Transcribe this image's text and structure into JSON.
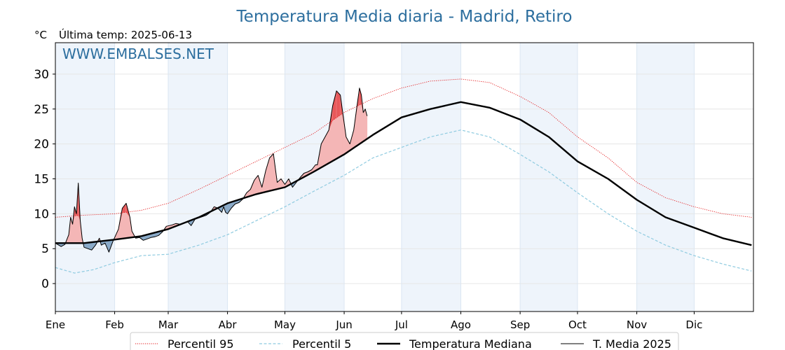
{
  "title": "Temperatura Media diaria - Madrid, Retiro",
  "unit_label": "°C",
  "last_temp_label": "Última temp: 2025-06-13",
  "watermark": "WWW.EMBALSES.NET",
  "colors": {
    "title": "#2c6e9e",
    "p95": "#e31a1c",
    "p5": "#8fcbe0",
    "median": "#000000",
    "current": "#000000",
    "above_fill": "#f4b6b6",
    "above_fill_strong": "#e8585a",
    "below_fill": "#8aaac8",
    "month_band": "#eef4fb",
    "grid": "#e6e6e6"
  },
  "chart_data": {
    "type": "line",
    "title": "Temperatura Media diaria - Madrid, Retiro",
    "ylabel": "°C",
    "xlim": [
      0,
      365
    ],
    "ylim": [
      -4,
      34.5
    ],
    "yticks": [
      0,
      5,
      10,
      15,
      20,
      25,
      30
    ],
    "grid": true,
    "legend_position": "bottom",
    "months": [
      {
        "label": "Ene",
        "day": 0
      },
      {
        "label": "Feb",
        "day": 31
      },
      {
        "label": "Mar",
        "day": 59
      },
      {
        "label": "Abr",
        "day": 90
      },
      {
        "label": "May",
        "day": 120
      },
      {
        "label": "Jun",
        "day": 151
      },
      {
        "label": "Jul",
        "day": 181
      },
      {
        "label": "Ago",
        "day": 212
      },
      {
        "label": "Sep",
        "day": 243
      },
      {
        "label": "Oct",
        "day": 273
      },
      {
        "label": "Nov",
        "day": 304
      },
      {
        "label": "Dic",
        "day": 334
      }
    ],
    "series": [
      {
        "name": "Percentil 95",
        "style": "dotted",
        "points": [
          [
            0,
            9.5
          ],
          [
            15,
            9.8
          ],
          [
            31,
            10
          ],
          [
            45,
            10.5
          ],
          [
            59,
            11.5
          ],
          [
            75,
            13.5
          ],
          [
            90,
            15.5
          ],
          [
            105,
            17.5
          ],
          [
            120,
            19.5
          ],
          [
            135,
            21.5
          ],
          [
            151,
            24.5
          ],
          [
            166,
            26.5
          ],
          [
            181,
            28
          ],
          [
            196,
            29
          ],
          [
            212,
            29.3
          ],
          [
            227,
            28.8
          ],
          [
            243,
            26.8
          ],
          [
            258,
            24.5
          ],
          [
            273,
            21
          ],
          [
            289,
            18
          ],
          [
            304,
            14.5
          ],
          [
            319,
            12.3
          ],
          [
            334,
            11
          ],
          [
            349,
            10
          ],
          [
            364,
            9.5
          ]
        ]
      },
      {
        "name": "Percentil 5",
        "style": "dashed",
        "points": [
          [
            0,
            2.3
          ],
          [
            10,
            1.5
          ],
          [
            20,
            2
          ],
          [
            31,
            3
          ],
          [
            45,
            4
          ],
          [
            59,
            4.2
          ],
          [
            75,
            5.5
          ],
          [
            90,
            7
          ],
          [
            105,
            9
          ],
          [
            120,
            11
          ],
          [
            135,
            13.2
          ],
          [
            151,
            15.5
          ],
          [
            166,
            18
          ],
          [
            181,
            19.5
          ],
          [
            196,
            21
          ],
          [
            212,
            22
          ],
          [
            227,
            21
          ],
          [
            243,
            18.5
          ],
          [
            258,
            16
          ],
          [
            273,
            13
          ],
          [
            289,
            10
          ],
          [
            304,
            7.5
          ],
          [
            319,
            5.5
          ],
          [
            334,
            4
          ],
          [
            349,
            2.8
          ],
          [
            364,
            1.8
          ]
        ]
      },
      {
        "name": "Temperatura Mediana",
        "style": "solid-thick",
        "points": [
          [
            0,
            5.8
          ],
          [
            15,
            5.8
          ],
          [
            31,
            6.3
          ],
          [
            45,
            6.8
          ],
          [
            59,
            7.8
          ],
          [
            75,
            9.5
          ],
          [
            90,
            11.5
          ],
          [
            105,
            12.8
          ],
          [
            120,
            13.8
          ],
          [
            135,
            16
          ],
          [
            151,
            18.5
          ],
          [
            166,
            21.3
          ],
          [
            181,
            23.8
          ],
          [
            196,
            25
          ],
          [
            212,
            26
          ],
          [
            227,
            25.2
          ],
          [
            243,
            23.5
          ],
          [
            258,
            21
          ],
          [
            273,
            17.5
          ],
          [
            289,
            15
          ],
          [
            304,
            12
          ],
          [
            319,
            9.5
          ],
          [
            334,
            8
          ],
          [
            349,
            6.5
          ],
          [
            364,
            5.5
          ]
        ]
      },
      {
        "name": "T. Media 2025",
        "style": "solid-thin",
        "points": [
          [
            0,
            5.8
          ],
          [
            3,
            5.3
          ],
          [
            5,
            5.6
          ],
          [
            7,
            7
          ],
          [
            8,
            9.5
          ],
          [
            9,
            8.5
          ],
          [
            10,
            11
          ],
          [
            11,
            10
          ],
          [
            12,
            14.4
          ],
          [
            13,
            9
          ],
          [
            14,
            6.5
          ],
          [
            15,
            5.2
          ],
          [
            17,
            5
          ],
          [
            19,
            4.8
          ],
          [
            21,
            5.5
          ],
          [
            23,
            6.5
          ],
          [
            24,
            5.5
          ],
          [
            26,
            5.8
          ],
          [
            28,
            4.5
          ],
          [
            30,
            6
          ],
          [
            33,
            7.8
          ],
          [
            35,
            10.8
          ],
          [
            37,
            11.5
          ],
          [
            39,
            9.5
          ],
          [
            40,
            7.5
          ],
          [
            42,
            6.5
          ],
          [
            44,
            6.6
          ],
          [
            46,
            6.2
          ],
          [
            48,
            6.4
          ],
          [
            50,
            6.6
          ],
          [
            52,
            6.7
          ],
          [
            54,
            6.9
          ],
          [
            56,
            7.4
          ],
          [
            58,
            8.2
          ],
          [
            61,
            8.4
          ],
          [
            63,
            8.6
          ],
          [
            65,
            8.5
          ],
          [
            67,
            8.7
          ],
          [
            69,
            8.9
          ],
          [
            71,
            8.3
          ],
          [
            73,
            9.2
          ],
          [
            75,
            9.4
          ],
          [
            77,
            9.6
          ],
          [
            79,
            9.8
          ],
          [
            81,
            10.2
          ],
          [
            83,
            11
          ],
          [
            85,
            10.8
          ],
          [
            87,
            10.2
          ],
          [
            88,
            11
          ],
          [
            89,
            10.2
          ],
          [
            90,
            10
          ],
          [
            92,
            10.8
          ],
          [
            94,
            11.4
          ],
          [
            96,
            11.6
          ],
          [
            98,
            12.1
          ],
          [
            100,
            13
          ],
          [
            102,
            13.5
          ],
          [
            104,
            14.8
          ],
          [
            106,
            15.5
          ],
          [
            108,
            13.8
          ],
          [
            110,
            16.2
          ],
          [
            112,
            18
          ],
          [
            114,
            18.6
          ],
          [
            116,
            14.5
          ],
          [
            118,
            15
          ],
          [
            120,
            14.2
          ],
          [
            122,
            15
          ],
          [
            124,
            13.8
          ],
          [
            126,
            14.5
          ],
          [
            128,
            15.2
          ],
          [
            130,
            15.8
          ],
          [
            132,
            16
          ],
          [
            134,
            16.3
          ],
          [
            136,
            17
          ],
          [
            137,
            17
          ],
          [
            139,
            20
          ],
          [
            141,
            21
          ],
          [
            143,
            22
          ],
          [
            145,
            25.5
          ],
          [
            147,
            27.6
          ],
          [
            149,
            27
          ],
          [
            150,
            25
          ],
          [
            152,
            21
          ],
          [
            154,
            20
          ],
          [
            156,
            22
          ],
          [
            158,
            26
          ],
          [
            159,
            28
          ],
          [
            160,
            27
          ],
          [
            161,
            24.5
          ],
          [
            162,
            25
          ],
          [
            163,
            24
          ]
        ]
      }
    ],
    "legend": [
      "Percentil 95",
      "Percentil 5",
      "Temperatura Mediana",
      "T. Media 2025"
    ]
  }
}
